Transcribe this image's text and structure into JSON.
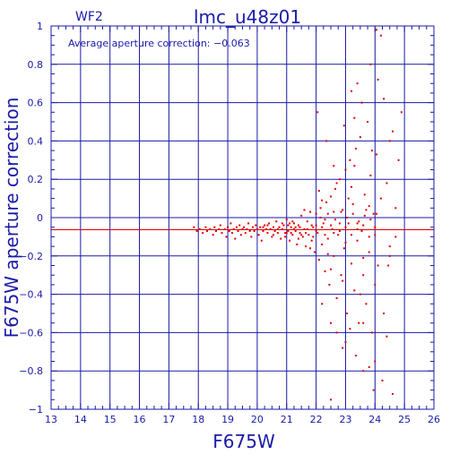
{
  "chart_data": {
    "type": "scatter",
    "panel_label": "WF2",
    "title": "lmc_u48z01",
    "annotation": "Average aperture correction: −0.063",
    "xlabel": "F675W",
    "ylabel": "F675W aperture correction",
    "xlim": [
      13,
      26
    ],
    "ylim": [
      -1,
      1
    ],
    "xticks": [
      13,
      14,
      15,
      16,
      17,
      18,
      19,
      20,
      21,
      22,
      23,
      24,
      25,
      26
    ],
    "yticks": [
      -1,
      -0.8,
      -0.6,
      -0.4,
      -0.2,
      0,
      0.2,
      0.4,
      0.6,
      0.8,
      1
    ],
    "ytick_labels": [
      "−1",
      "−0.8",
      "−0.6",
      "−0.4",
      "−0.2",
      "0",
      "0.2",
      "0.4",
      "0.6",
      "0.8",
      "1"
    ],
    "grid": true,
    "average_line": -0.063,
    "colors": {
      "axis": "#1a1aa8",
      "points": "#e00000",
      "average_line": "#e00000"
    },
    "points": [
      [
        17.85,
        -0.05
      ],
      [
        17.95,
        -0.07
      ],
      [
        18.05,
        -0.06
      ],
      [
        18.15,
        -0.08
      ],
      [
        18.25,
        -0.05
      ],
      [
        18.3,
        -0.07
      ],
      [
        18.4,
        -0.06
      ],
      [
        18.5,
        -0.09
      ],
      [
        18.55,
        -0.05
      ],
      [
        18.6,
        -0.07
      ],
      [
        18.7,
        -0.06
      ],
      [
        18.75,
        -0.04
      ],
      [
        18.8,
        -0.08
      ],
      [
        18.9,
        -0.06
      ],
      [
        18.95,
        -0.1
      ],
      [
        19.0,
        -0.05
      ],
      [
        19.05,
        -0.07
      ],
      [
        19.1,
        -0.03
      ],
      [
        19.15,
        -0.08
      ],
      [
        19.2,
        -0.06
      ],
      [
        19.25,
        -0.11
      ],
      [
        19.3,
        -0.05
      ],
      [
        19.35,
        -0.07
      ],
      [
        19.4,
        -0.04
      ],
      [
        19.45,
        -0.09
      ],
      [
        19.5,
        -0.06
      ],
      [
        19.55,
        -0.05
      ],
      [
        19.6,
        -0.08
      ],
      [
        19.65,
        -0.06
      ],
      [
        19.7,
        -0.03
      ],
      [
        19.75,
        -0.07
      ],
      [
        19.8,
        -0.1
      ],
      [
        19.85,
        -0.05
      ],
      [
        19.9,
        -0.07
      ],
      [
        19.95,
        -0.04
      ],
      [
        20.0,
        -0.06
      ],
      [
        20.05,
        -0.09
      ],
      [
        20.1,
        -0.05
      ],
      [
        20.15,
        -0.12
      ],
      [
        20.2,
        -0.07
      ],
      [
        20.25,
        -0.04
      ],
      [
        20.3,
        -0.06
      ],
      [
        20.35,
        -0.08
      ],
      [
        20.4,
        -0.03
      ],
      [
        20.45,
        -0.06
      ],
      [
        20.5,
        -0.1
      ],
      [
        20.55,
        -0.05
      ],
      [
        20.6,
        -0.07
      ],
      [
        20.65,
        -0.02
      ],
      [
        20.7,
        -0.08
      ],
      [
        20.75,
        -0.05
      ],
      [
        20.8,
        -0.11
      ],
      [
        20.85,
        -0.06
      ],
      [
        20.9,
        -0.04
      ],
      [
        20.95,
        -0.08
      ],
      [
        21.0,
        -0.01
      ],
      [
        21.05,
        -0.07
      ],
      [
        21.1,
        -0.12
      ],
      [
        21.15,
        -0.05
      ],
      [
        21.2,
        -0.09
      ],
      [
        21.25,
        -0.03
      ],
      [
        21.3,
        -0.07
      ],
      [
        21.35,
        -0.14
      ],
      [
        21.4,
        -0.04
      ],
      [
        21.45,
        -0.08
      ],
      [
        21.5,
        0.01
      ],
      [
        21.55,
        -0.1
      ],
      [
        21.6,
        -0.06
      ],
      [
        21.65,
        -0.15
      ],
      [
        21.7,
        -0.02
      ],
      [
        21.75,
        -0.09
      ],
      [
        21.8,
        0.03
      ],
      [
        21.85,
        -0.12
      ],
      [
        21.9,
        -0.05
      ],
      [
        21.95,
        -0.18
      ],
      [
        22.0,
        0.02
      ],
      [
        22.05,
        -0.08
      ],
      [
        22.1,
        -0.22
      ],
      [
        22.15,
        0.05
      ],
      [
        22.2,
        -0.14
      ],
      [
        22.25,
        -0.03
      ],
      [
        22.3,
        -0.28
      ],
      [
        22.35,
        0.08
      ],
      [
        22.4,
        -0.11
      ],
      [
        22.45,
        -0.35
      ],
      [
        22.5,
        0.11
      ],
      [
        22.55,
        -0.06
      ],
      [
        22.6,
        -0.2
      ],
      [
        22.65,
        0.15
      ],
      [
        22.7,
        -0.42
      ],
      [
        22.75,
        -0.09
      ],
      [
        22.8,
        0.2
      ],
      [
        22.85,
        -0.3
      ],
      [
        22.9,
        0.04
      ],
      [
        22.95,
        -0.16
      ],
      [
        23.0,
        0.25
      ],
      [
        23.05,
        -0.5
      ],
      [
        23.1,
        -0.03
      ],
      [
        23.15,
        0.3
      ],
      [
        23.2,
        -0.24
      ],
      [
        23.25,
        0.07
      ],
      [
        23.3,
        -0.38
      ],
      [
        23.35,
        0.36
      ],
      [
        23.4,
        -0.12
      ],
      [
        23.45,
        -0.55
      ],
      [
        23.5,
        0.42
      ],
      [
        23.55,
        -0.07
      ],
      [
        23.6,
        -0.3
      ],
      [
        23.65,
        0.12
      ],
      [
        23.7,
        -0.45
      ],
      [
        23.75,
        0.5
      ],
      [
        23.8,
        -0.18
      ],
      [
        23.85,
        0.22
      ],
      [
        23.9,
        -0.6
      ],
      [
        23.95,
        0.02
      ],
      [
        24.0,
        -0.35
      ],
      [
        24.05,
        0.33
      ],
      [
        24.1,
        -0.25
      ],
      [
        24.2,
        0.1
      ],
      [
        24.3,
        -0.5
      ],
      [
        24.4,
        0.18
      ],
      [
        24.5,
        -0.2
      ],
      [
        24.6,
        0.45
      ],
      [
        24.7,
        -0.1
      ],
      [
        24.8,
        0.3
      ],
      [
        24.9,
        0.55
      ],
      [
        21.2,
        -0.02
      ],
      [
        21.4,
        -0.11
      ],
      [
        21.6,
        0.04
      ],
      [
        21.8,
        -0.16
      ],
      [
        22.0,
        -0.04
      ],
      [
        22.2,
        0.09
      ],
      [
        22.4,
        -0.19
      ],
      [
        22.6,
        0.03
      ],
      [
        22.8,
        -0.07
      ],
      [
        23.0,
        -0.13
      ],
      [
        23.2,
        0.16
      ],
      [
        23.4,
        -0.03
      ],
      [
        23.6,
        -0.21
      ],
      [
        23.8,
        0.06
      ],
      [
        24.0,
        -0.09
      ],
      [
        22.1,
        0.14
      ],
      [
        22.3,
        -0.01
      ],
      [
        22.5,
        -0.27
      ],
      [
        22.7,
        0.18
      ],
      [
        22.9,
        -0.33
      ],
      [
        23.1,
        0.1
      ],
      [
        23.3,
        0.27
      ],
      [
        23.5,
        -0.4
      ],
      [
        23.7,
        0.04
      ],
      [
        23.9,
        0.35
      ],
      [
        22.05,
        0.55
      ],
      [
        22.35,
        0.4
      ],
      [
        22.6,
        0.27
      ],
      [
        22.95,
        0.48
      ],
      [
        23.2,
        0.66
      ],
      [
        23.4,
        0.7
      ],
      [
        23.55,
        0.6
      ],
      [
        23.85,
        0.8
      ],
      [
        24.1,
        0.72
      ],
      [
        24.05,
        0.98
      ],
      [
        24.2,
        0.95
      ],
      [
        23.3,
        0.52
      ],
      [
        24.3,
        0.62
      ],
      [
        24.5,
        0.4
      ],
      [
        24.7,
        0.05
      ],
      [
        22.2,
        -0.45
      ],
      [
        22.5,
        -0.55
      ],
      [
        22.7,
        -0.6
      ],
      [
        22.9,
        -0.68
      ],
      [
        23.15,
        -0.58
      ],
      [
        23.35,
        -0.72
      ],
      [
        23.6,
        -0.8
      ],
      [
        23.8,
        -0.78
      ],
      [
        24.0,
        -0.75
      ],
      [
        24.25,
        -0.85
      ],
      [
        24.4,
        -0.62
      ],
      [
        24.6,
        -0.92
      ],
      [
        23.95,
        -0.9
      ],
      [
        22.5,
        -0.95
      ],
      [
        23.0,
        -0.65
      ],
      [
        23.6,
        -0.55
      ],
      [
        24.45,
        -0.25
      ],
      [
        24.5,
        -0.15
      ],
      [
        21.0,
        -0.08
      ],
      [
        21.1,
        -0.03
      ],
      [
        21.3,
        -0.05
      ],
      [
        21.5,
        -0.09
      ],
      [
        21.7,
        -0.06
      ],
      [
        21.9,
        -0.1
      ],
      [
        22.0,
        -0.07
      ],
      [
        22.2,
        -0.05
      ],
      [
        22.3,
        -0.09
      ],
      [
        22.5,
        -0.04
      ],
      [
        22.6,
        -0.08
      ],
      [
        22.8,
        -0.03
      ],
      [
        23.0,
        -0.05
      ],
      [
        23.2,
        -0.09
      ],
      [
        23.4,
        -0.06
      ],
      [
        23.6,
        -0.04
      ],
      [
        23.8,
        -0.1
      ],
      [
        24.0,
        -0.05
      ],
      [
        20.2,
        -0.05
      ],
      [
        20.35,
        -0.04
      ],
      [
        20.55,
        -0.09
      ],
      [
        20.7,
        -0.06
      ],
      [
        20.85,
        -0.03
      ],
      [
        20.95,
        -0.1
      ],
      [
        21.05,
        -0.04
      ],
      [
        21.15,
        -0.08
      ],
      [
        21.25,
        -0.06
      ],
      [
        21.45,
        -0.05
      ],
      [
        21.65,
        -0.08
      ],
      [
        21.85,
        -0.04
      ],
      [
        22.15,
        0.0
      ],
      [
        22.4,
        0.02
      ],
      [
        22.65,
        -0.01
      ],
      [
        22.85,
        0.03
      ],
      [
        23.05,
        0.0
      ],
      [
        23.25,
        0.02
      ],
      [
        23.45,
        -0.02
      ],
      [
        23.65,
        0.01
      ],
      [
        23.85,
        -0.01
      ],
      [
        24.05,
        0.02
      ]
    ]
  }
}
